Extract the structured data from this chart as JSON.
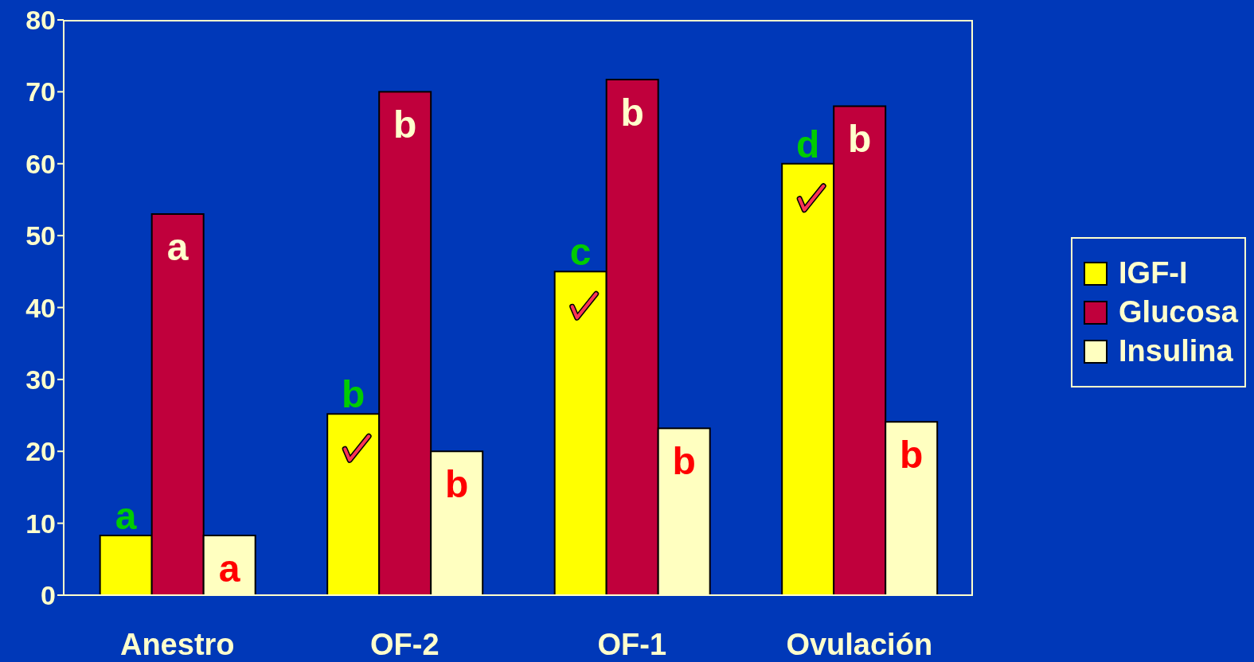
{
  "chart_data": {
    "type": "bar",
    "categories": [
      "Anestro",
      "OF-2",
      "OF-1",
      "Ovulación"
    ],
    "series": [
      {
        "name": "IGF-I",
        "color": "#ffff00",
        "values": [
          8.3,
          25.2,
          45,
          60
        ],
        "value_labels": [
          "a",
          "b",
          "c",
          "d"
        ]
      },
      {
        "name": "Glucosa",
        "color": "#c0003c",
        "values": [
          53,
          70,
          71.7,
          68
        ],
        "value_labels": [
          "a",
          "b",
          "b",
          "b"
        ]
      },
      {
        "name": "Insulina",
        "color": "#ffffc0",
        "values": [
          8.3,
          20,
          23.2,
          24.1
        ],
        "value_labels": [
          "a",
          "b",
          "b",
          "b"
        ]
      }
    ],
    "ylim": [
      0,
      80
    ],
    "yticks": [
      0,
      10,
      20,
      30,
      40,
      50,
      60,
      70,
      80
    ],
    "legend": "right"
  }
}
